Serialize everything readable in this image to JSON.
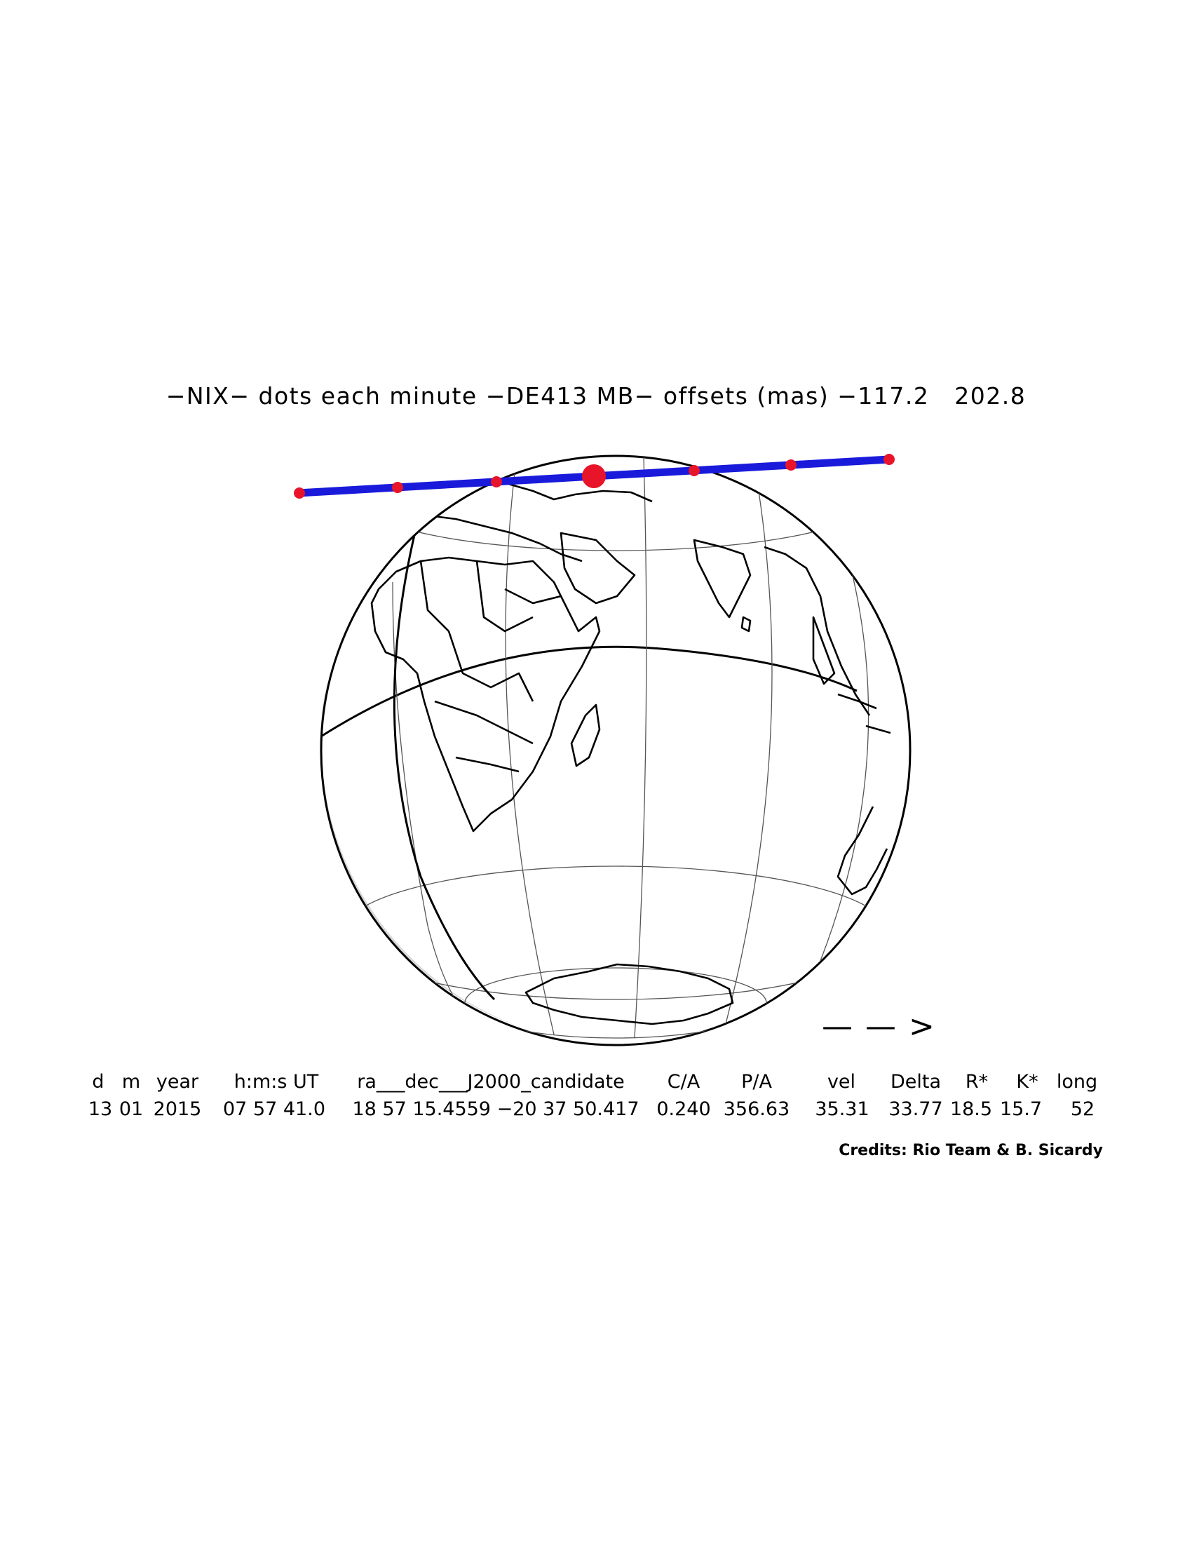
{
  "title": "−NIX− dots each minute −DE413 MB− offsets (mas) −117.2   202.8",
  "direction_arrow": "— — >",
  "table": {
    "headers": [
      "d",
      "m",
      "year",
      "h:m:s UT",
      "ra___dec___J2000_candidate",
      "C/A",
      "P/A",
      "vel",
      "Delta",
      "R*",
      "K*",
      "long"
    ],
    "values": [
      "13",
      "01",
      "2015",
      "07 57 41.0",
      "18 57 15.4559 −20 37 50.417",
      "0.240",
      "356.63",
      "35.31",
      "33.77",
      "18.5",
      "15.7",
      "52"
    ]
  },
  "credits": "Credits: Rio Team & B. Sicardy",
  "colors": {
    "track": "#1a1adb",
    "dots": "#e8142a",
    "outline": "#000000",
    "grid": "#555555",
    "shade": "#d8d8d8"
  }
}
